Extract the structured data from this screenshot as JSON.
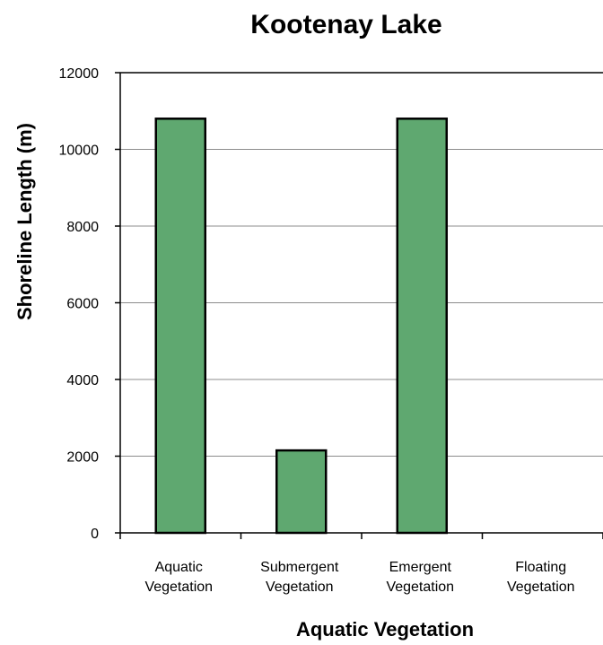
{
  "chart_data": {
    "type": "bar",
    "title": "Kootenay Lake",
    "xlabel": "Aquatic Vegetation",
    "ylabel": "Shoreline Length (m)",
    "categories": [
      [
        "Aquatic",
        "Vegetation"
      ],
      [
        "Submergent",
        "Vegetation"
      ],
      [
        "Emergent",
        "Vegetation"
      ],
      [
        "Floating",
        "Vegetation"
      ]
    ],
    "values": [
      10800,
      2150,
      10800,
      0
    ],
    "ylim": [
      0,
      12000
    ],
    "yticks": [
      0,
      2000,
      4000,
      6000,
      8000,
      10000,
      12000
    ],
    "grid": true,
    "bar_color": "#5fa870",
    "bar_edge_color": "#000000"
  }
}
